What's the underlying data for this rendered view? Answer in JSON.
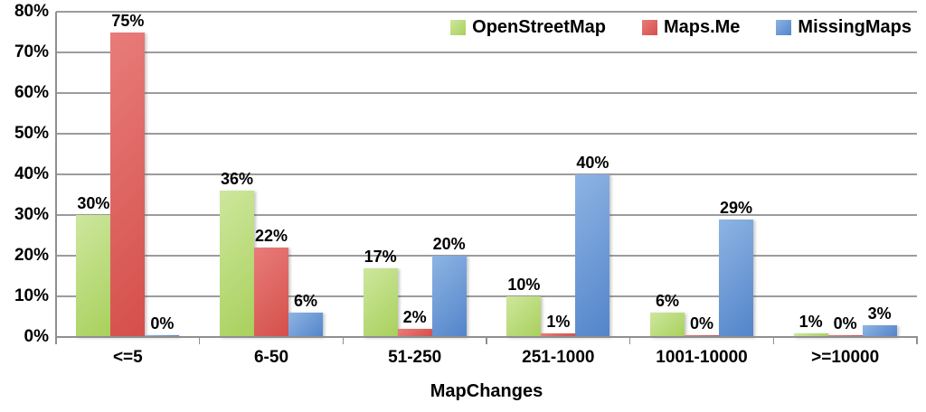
{
  "chart_data": {
    "type": "bar",
    "title": "",
    "xlabel": "MapChanges",
    "ylabel": "",
    "categories": [
      "<=5",
      "6-50",
      "51-250",
      "251-1000",
      "1001-10000",
      ">=10000"
    ],
    "series": [
      {
        "name": "OpenStreetMap",
        "values": [
          30,
          36,
          17,
          10,
          6,
          1
        ],
        "labels": [
          "30%",
          "36%",
          "17%",
          "10%",
          "6%",
          "1%"
        ],
        "color_light": "#cde79d",
        "color_dark": "#a9d05c"
      },
      {
        "name": "Maps.Me",
        "values": [
          75,
          22,
          2,
          1,
          0,
          0
        ],
        "labels": [
          "75%",
          "22%",
          "2%",
          "1%",
          "0%",
          "0%"
        ],
        "color_light": "#e87c79",
        "color_dark": "#d44f4b"
      },
      {
        "name": "MissingMaps",
        "values": [
          0,
          6,
          20,
          40,
          29,
          3
        ],
        "labels": [
          "0%",
          "6%",
          "20%",
          "40%",
          "29%",
          "3%"
        ],
        "color_light": "#8db4e3",
        "color_dark": "#5384ca"
      }
    ],
    "ylim": [
      0,
      80
    ],
    "ytick_step": 10,
    "ytick_labels": [
      "0%",
      "10%",
      "20%",
      "30%",
      "40%",
      "50%",
      "60%",
      "70%",
      "80%"
    ],
    "grid": true,
    "legend_position": "top-right",
    "colors": {
      "gridline": "#9c9c9c",
      "axis": "#8f8f8f",
      "text": "#000000"
    }
  }
}
